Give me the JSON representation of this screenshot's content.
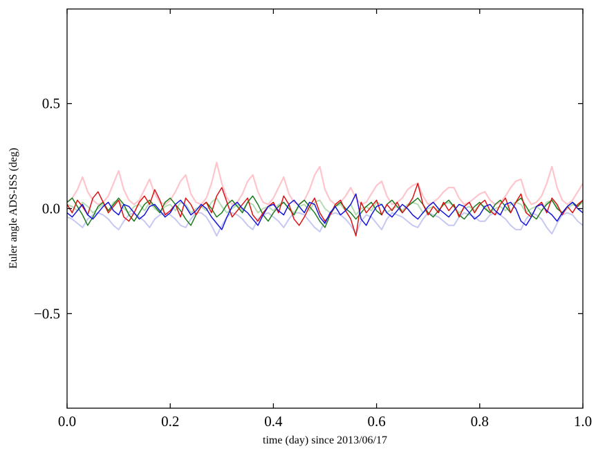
{
  "figure": {
    "background": "#ffffff",
    "frame_color": "#000000"
  },
  "chart_data": {
    "type": "line",
    "title": "",
    "xlabel": "time (day) since 2013/06/17",
    "ylabel": "Euler angle ADS-ISS (deg)",
    "xlim": [
      0.0,
      1.0
    ],
    "ylim": [
      -0.95,
      0.95
    ],
    "grid": false,
    "legend": "none",
    "x_ticks": [
      0.0,
      0.2,
      0.4,
      0.6,
      0.8,
      1.0
    ],
    "x_tick_labels": [
      "0.0",
      "0.2",
      "0.4",
      "0.6",
      "0.8",
      "1.0"
    ],
    "y_ticks": [
      0.5,
      0.0,
      -0.5
    ],
    "y_tick_labels": [
      "0.5",
      "0.0",
      "−0.5"
    ],
    "x_start": 0.0,
    "x_step": 0.01,
    "series": [
      {
        "name": "light-pink",
        "color": "#ffc4cc",
        "width": 2.2,
        "values": [
          0.03,
          0.05,
          0.09,
          0.15,
          0.08,
          0.04,
          0.02,
          0.03,
          0.06,
          0.12,
          0.18,
          0.09,
          0.04,
          0.02,
          0.04,
          0.09,
          0.14,
          0.07,
          0.03,
          0.02,
          0.04,
          0.08,
          0.13,
          0.16,
          0.07,
          0.03,
          0.02,
          0.05,
          0.12,
          0.22,
          0.12,
          0.05,
          0.02,
          0.03,
          0.07,
          0.13,
          0.16,
          0.08,
          0.03,
          0.02,
          0.05,
          0.1,
          0.15,
          0.07,
          0.03,
          0.02,
          0.04,
          0.09,
          0.16,
          0.2,
          0.09,
          0.04,
          0.02,
          0.03,
          0.06,
          0.1,
          0.05,
          0.02,
          0.03,
          0.07,
          0.11,
          0.13,
          0.06,
          0.02,
          0.03,
          0.05,
          0.09,
          0.11,
          0.12,
          0.06,
          0.02,
          0.03,
          0.05,
          0.08,
          0.1,
          0.1,
          0.05,
          0.02,
          0.03,
          0.05,
          0.07,
          0.08,
          0.04,
          0.02,
          0.03,
          0.06,
          0.1,
          0.13,
          0.14,
          0.06,
          0.02,
          0.03,
          0.06,
          0.12,
          0.2,
          0.1,
          0.04,
          0.02,
          0.04,
          0.08,
          0.12
        ]
      },
      {
        "name": "light-green",
        "color": "#b6dcb6",
        "width": 2.0,
        "values": [
          0.02,
          0.01,
          -0.01,
          0.03,
          0.01,
          -0.02,
          0.0,
          0.02,
          -0.01,
          0.03,
          0.04,
          0.0,
          -0.02,
          0.01,
          0.02,
          -0.01,
          0.03,
          0.0,
          -0.02,
          0.01,
          0.02,
          -0.01,
          0.03,
          0.02,
          -0.02,
          0.0,
          0.01,
          -0.01,
          0.03,
          0.05,
          0.01,
          -0.02,
          0.0,
          0.02,
          -0.01,
          0.03,
          0.02,
          -0.02,
          0.0,
          0.01,
          -0.01,
          0.02,
          0.03,
          0.0,
          -0.02,
          0.01,
          0.02,
          -0.01,
          0.03,
          0.04,
          0.0,
          -0.02,
          0.01,
          0.02,
          -0.01,
          0.02,
          -0.03,
          0.0,
          0.01,
          -0.01,
          0.03,
          0.02,
          -0.02,
          0.0,
          0.01,
          -0.01,
          0.02,
          0.03,
          0.02,
          -0.02,
          0.0,
          0.01,
          -0.01,
          0.02,
          0.03,
          0.01,
          -0.02,
          0.0,
          0.01,
          -0.01,
          0.02,
          0.01,
          -0.02,
          0.0,
          0.01,
          -0.01,
          0.02,
          0.03,
          0.02,
          -0.02,
          0.0,
          0.01,
          -0.01,
          0.03,
          0.04,
          0.01,
          -0.02,
          0.0,
          0.02,
          0.01,
          0.03
        ]
      },
      {
        "name": "light-blue",
        "color": "#c6c8f2",
        "width": 2.0,
        "values": [
          -0.04,
          -0.05,
          -0.07,
          -0.09,
          -0.05,
          -0.03,
          -0.02,
          -0.03,
          -0.05,
          -0.08,
          -0.1,
          -0.06,
          -0.03,
          -0.02,
          -0.04,
          -0.06,
          -0.09,
          -0.05,
          -0.03,
          -0.02,
          -0.03,
          -0.05,
          -0.08,
          -0.09,
          -0.05,
          -0.02,
          -0.02,
          -0.04,
          -0.08,
          -0.13,
          -0.08,
          -0.04,
          -0.02,
          -0.03,
          -0.05,
          -0.08,
          -0.1,
          -0.05,
          -0.03,
          -0.02,
          -0.04,
          -0.06,
          -0.09,
          -0.05,
          -0.02,
          -0.02,
          -0.03,
          -0.06,
          -0.09,
          -0.11,
          -0.06,
          -0.03,
          -0.02,
          -0.03,
          -0.05,
          -0.08,
          -0.12,
          -0.06,
          -0.03,
          -0.04,
          -0.07,
          -0.1,
          -0.05,
          -0.02,
          -0.03,
          -0.04,
          -0.06,
          -0.08,
          -0.09,
          -0.05,
          -0.02,
          -0.03,
          -0.04,
          -0.06,
          -0.08,
          -0.08,
          -0.04,
          -0.02,
          -0.03,
          -0.04,
          -0.06,
          -0.06,
          -0.03,
          -0.02,
          -0.03,
          -0.05,
          -0.08,
          -0.1,
          -0.1,
          -0.05,
          -0.02,
          -0.03,
          -0.05,
          -0.09,
          -0.12,
          -0.07,
          -0.03,
          -0.02,
          -0.03,
          -0.06,
          -0.08
        ]
      },
      {
        "name": "green",
        "color": "#1e7a1e",
        "width": 1.5,
        "values": [
          0.03,
          0.05,
          0.01,
          -0.03,
          -0.08,
          -0.04,
          0.01,
          0.03,
          -0.01,
          0.02,
          0.05,
          0.02,
          -0.03,
          -0.06,
          -0.02,
          0.02,
          0.04,
          0.01,
          -0.02,
          0.03,
          0.05,
          0.02,
          -0.01,
          -0.05,
          -0.08,
          -0.03,
          0.01,
          0.03,
          0.0,
          -0.04,
          -0.02,
          0.02,
          0.04,
          0.01,
          -0.02,
          0.03,
          0.06,
          0.02,
          -0.03,
          -0.06,
          -0.02,
          0.01,
          0.03,
          0.0,
          -0.03,
          0.02,
          0.04,
          0.01,
          -0.02,
          -0.06,
          -0.09,
          -0.03,
          0.01,
          0.03,
          0.0,
          -0.02,
          -0.05,
          -0.02,
          0.01,
          0.03,
          -0.01,
          -0.03,
          0.02,
          0.04,
          0.01,
          -0.02,
          0.01,
          0.03,
          0.05,
          0.02,
          -0.02,
          -0.04,
          -0.01,
          0.02,
          0.04,
          0.01,
          -0.03,
          -0.05,
          -0.02,
          0.01,
          0.03,
          0.0,
          -0.02,
          0.02,
          0.04,
          0.01,
          -0.02,
          0.03,
          0.05,
          0.01,
          -0.03,
          -0.05,
          -0.01,
          0.02,
          0.04,
          0.0,
          -0.02,
          0.01,
          0.03,
          0.01,
          0.04
        ]
      },
      {
        "name": "red",
        "color": "#dd1111",
        "width": 1.5,
        "values": [
          0.02,
          -0.02,
          0.04,
          0.01,
          -0.03,
          0.05,
          0.08,
          0.03,
          -0.02,
          0.01,
          0.04,
          -0.04,
          -0.06,
          -0.02,
          0.03,
          0.06,
          0.02,
          0.09,
          0.04,
          -0.03,
          -0.01,
          0.02,
          -0.04,
          0.05,
          0.02,
          -0.03,
          0.01,
          0.03,
          -0.02,
          0.06,
          0.1,
          0.03,
          -0.04,
          -0.01,
          0.02,
          0.05,
          -0.03,
          -0.06,
          -0.02,
          0.01,
          0.03,
          -0.02,
          0.06,
          0.02,
          -0.05,
          -0.08,
          -0.04,
          0.01,
          0.05,
          -0.02,
          -0.06,
          -0.03,
          0.02,
          0.04,
          -0.01,
          -0.05,
          -0.13,
          0.03,
          -0.02,
          0.01,
          0.04,
          -0.03,
          0.02,
          -0.01,
          0.03,
          -0.02,
          0.01,
          0.05,
          0.12,
          0.02,
          -0.03,
          0.01,
          -0.02,
          0.03,
          -0.01,
          0.02,
          -0.04,
          0.01,
          0.03,
          -0.02,
          0.02,
          0.04,
          -0.01,
          -0.03,
          0.02,
          0.05,
          -0.02,
          0.03,
          0.07,
          -0.02,
          -0.04,
          0.01,
          0.03,
          -0.02,
          0.05,
          0.02,
          -0.03,
          0.01,
          -0.02,
          0.02,
          0.04
        ]
      },
      {
        "name": "blue",
        "color": "#1414dd",
        "width": 1.5,
        "values": [
          -0.02,
          -0.04,
          -0.01,
          0.02,
          -0.03,
          -0.05,
          -0.02,
          0.01,
          0.03,
          -0.01,
          -0.03,
          0.02,
          0.01,
          -0.02,
          -0.05,
          -0.03,
          0.01,
          0.02,
          -0.01,
          -0.04,
          -0.02,
          0.02,
          0.04,
          0.01,
          -0.03,
          -0.01,
          0.02,
          0.0,
          -0.04,
          -0.07,
          -0.1,
          -0.04,
          0.01,
          0.03,
          0.0,
          -0.02,
          -0.05,
          -0.08,
          -0.03,
          0.01,
          0.02,
          -0.01,
          -0.03,
          0.02,
          0.04,
          0.01,
          -0.02,
          0.03,
          0.02,
          -0.04,
          -0.07,
          -0.02,
          0.01,
          -0.03,
          -0.01,
          0.02,
          0.07,
          -0.05,
          -0.08,
          -0.03,
          0.01,
          0.02,
          -0.02,
          -0.04,
          -0.01,
          0.02,
          0.0,
          -0.03,
          -0.05,
          -0.02,
          0.01,
          0.03,
          0.0,
          -0.02,
          -0.04,
          -0.01,
          0.02,
          0.01,
          -0.02,
          -0.05,
          -0.03,
          0.01,
          0.02,
          -0.01,
          -0.03,
          0.02,
          0.03,
          0.0,
          -0.06,
          -0.08,
          -0.04,
          0.01,
          0.02,
          -0.01,
          -0.03,
          -0.06,
          -0.02,
          0.01,
          0.03,
          0.0,
          -0.02
        ]
      }
    ]
  }
}
